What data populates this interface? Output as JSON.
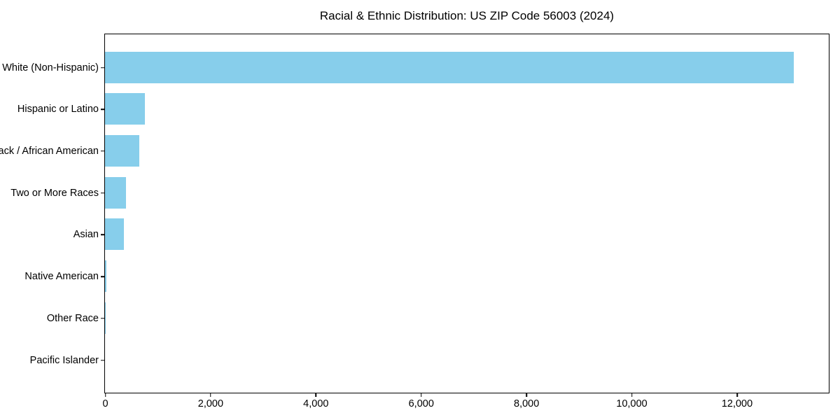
{
  "chart_data": {
    "type": "bar",
    "orientation": "horizontal",
    "title": "Racial & Ethnic Distribution: US ZIP Code 56003 (2024)",
    "categories": [
      "White (Non-Hispanic)",
      "Hispanic or Latino",
      "Black / African American",
      "Two or More Races",
      "Asian",
      "Native American",
      "Other Race",
      "Pacific Islander"
    ],
    "values": [
      13080,
      760,
      655,
      395,
      365,
      20,
      10,
      0
    ],
    "xlabel": "",
    "ylabel": "",
    "xlim": [
      0,
      13735
    ],
    "xticks": [
      0,
      2000,
      4000,
      6000,
      8000,
      10000,
      12000
    ],
    "xtick_labels": [
      "0",
      "2,000",
      "4,000",
      "6,000",
      "8,000",
      "10,000",
      "12,000"
    ],
    "bar_color": "#87CEEB",
    "axis_color": "#000000",
    "background_color": "#FFFFFF",
    "grid": false,
    "legend": false
  }
}
